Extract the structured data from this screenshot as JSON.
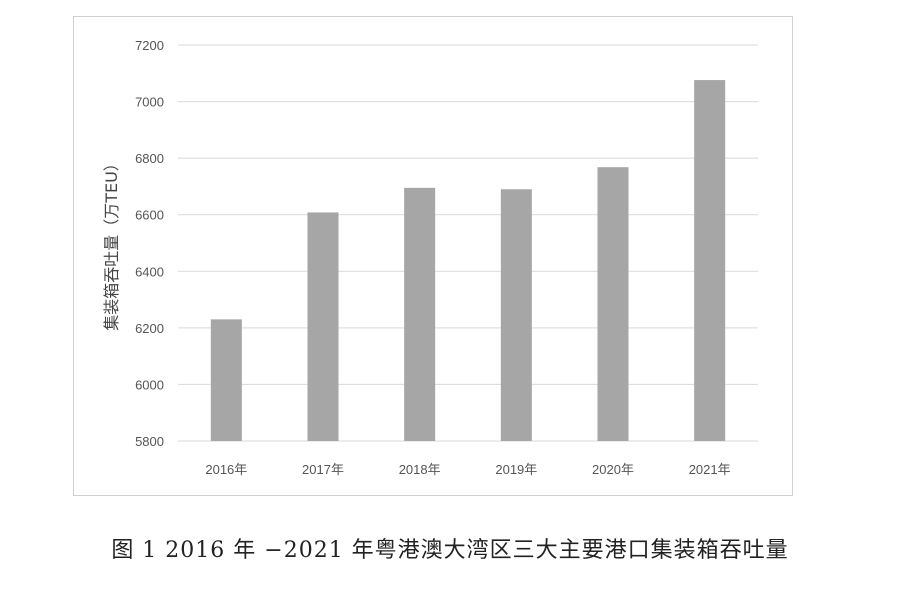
{
  "chart_data": {
    "type": "bar",
    "categories": [
      "2016年",
      "2017年",
      "2018年",
      "2019年",
      "2020年",
      "2021年"
    ],
    "values": [
      6230,
      6608,
      6695,
      6690,
      6768,
      7076
    ],
    "title": "",
    "xlabel": "",
    "ylabel": "集装箱吞吐量（万TEU）",
    "ylim": [
      5800,
      7200
    ],
    "yticks": [
      5800,
      6000,
      6200,
      6400,
      6600,
      6800,
      7000,
      7200
    ],
    "grid": true,
    "bar_color": "#a6a6a6",
    "grid_color": "#d9d9d9"
  },
  "caption": "图 1 2016 年 −2021 年粤港澳大湾区三大主要港口集装箱吞吐量"
}
